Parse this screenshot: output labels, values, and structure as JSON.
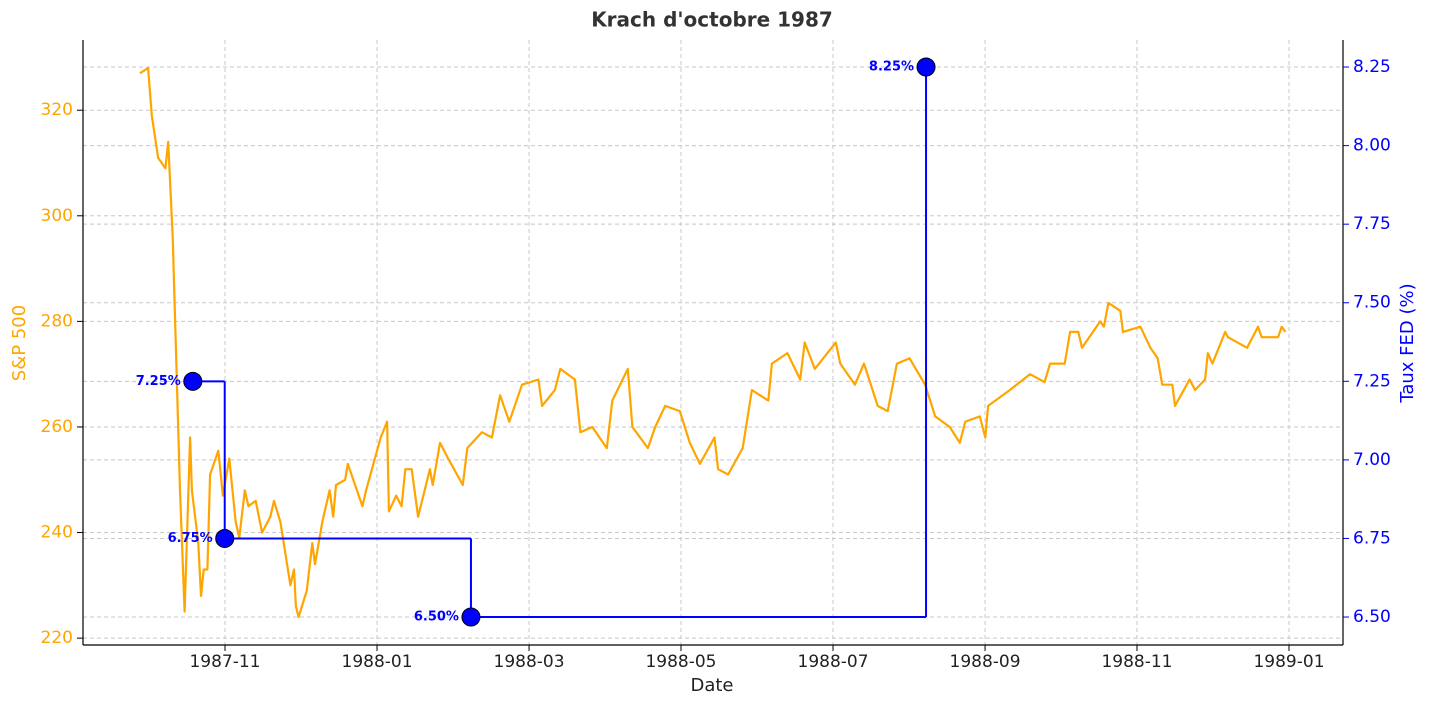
{
  "chart_data": {
    "type": "line",
    "title": "Krach d'octobre 1987",
    "xlabel": "Date",
    "ylabel": "S&P 500",
    "y2label": "Taux FED (%)",
    "grid": true,
    "xlim": [
      1987.6776,
      1989.0592
    ],
    "xticks": [
      {
        "value": 1987.8333,
        "label": "1987-11"
      },
      {
        "value": 1988.0,
        "label": "1988-01"
      },
      {
        "value": 1988.1667,
        "label": "1988-03"
      },
      {
        "value": 1988.3333,
        "label": "1988-05"
      },
      {
        "value": 1988.5,
        "label": "1988-07"
      },
      {
        "value": 1988.6667,
        "label": "1988-09"
      },
      {
        "value": 1988.8333,
        "label": "1988-11"
      },
      {
        "value": 1989.0,
        "label": "1989-01"
      }
    ],
    "ylim": [
      218.7,
      333.3
    ],
    "yticks": [
      220,
      240,
      260,
      280,
      300,
      320
    ],
    "y2lim": [
      6.411,
      8.336
    ],
    "y2ticks": [
      {
        "value": 6.5,
        "label": "6.50"
      },
      6.75,
      {
        "value": 7.0,
        "label": "7.00"
      },
      7.25,
      {
        "value": 7.5,
        "label": "7.50"
      },
      7.75,
      {
        "value": 8.0,
        "label": "8.00"
      },
      8.25
    ],
    "series": [
      {
        "color": "#ffa500",
        "axis": "y",
        "x": [
          1987.74,
          1987.749,
          1987.753,
          1987.76,
          1987.768,
          1987.771,
          1987.776,
          1987.784,
          1987.789,
          1987.795,
          1987.797,
          1987.804,
          1987.807,
          1987.81,
          1987.814,
          1987.817,
          1987.826,
          1987.831,
          1987.838,
          1987.845,
          1987.849,
          1987.855,
          1987.859,
          1987.867,
          1987.874,
          1987.883,
          1987.887,
          1987.894,
          1987.905,
          1987.909,
          1987.911,
          1987.914,
          1987.923,
          1987.929,
          1987.932,
          1987.94,
          1987.948,
          1987.952,
          1987.955,
          1987.965,
          1987.968,
          1987.984,
          1987.988,
          1988.004,
          1988.011,
          1988.013,
          1988.021,
          1988.027,
          1988.031,
          1988.038,
          1988.045,
          1988.058,
          1988.061,
          1988.069,
          1988.078,
          1988.094,
          1988.099,
          1988.115,
          1988.126,
          1988.135,
          1988.145,
          1988.159,
          1988.177,
          1988.181,
          1988.195,
          1988.201,
          1988.217,
          1988.223,
          1988.236,
          1988.252,
          1988.258,
          1988.275,
          1988.28,
          1988.297,
          1988.305,
          1988.316,
          1988.332,
          1988.343,
          1988.354,
          1988.37,
          1988.374,
          1988.385,
          1988.401,
          1988.411,
          1988.429,
          1988.433,
          1988.45,
          1988.464,
          1988.469,
          1988.48,
          1988.503,
          1988.508,
          1988.524,
          1988.534,
          1988.549,
          1988.56,
          1988.57,
          1988.584,
          1988.601,
          1988.612,
          1988.628,
          1988.639,
          1988.645,
          1988.661,
          1988.667,
          1988.67,
          1988.694,
          1988.716,
          1988.732,
          1988.738,
          1988.754,
          1988.76,
          1988.769,
          1988.773,
          1988.793,
          1988.797,
          1988.802,
          1988.815,
          1988.818,
          1988.837,
          1988.848,
          1988.856,
          1988.861,
          1988.872,
          1988.875,
          1988.891,
          1988.897,
          1988.908,
          1988.911,
          1988.916,
          1988.93,
          1988.933,
          1988.954,
          1988.966,
          1988.97,
          1988.988,
          1988.992,
          1988.996
        ],
        "values": [
          327,
          328,
          319,
          311,
          309,
          314,
          296,
          248,
          225,
          258,
          248,
          238,
          228,
          233,
          233,
          251,
          255.5,
          247,
          254,
          242,
          239,
          248,
          245,
          246,
          240,
          243,
          246,
          242,
          230,
          233,
          226,
          224,
          229,
          238,
          234,
          242,
          248,
          243,
          249,
          250,
          253,
          245,
          248,
          258,
          261,
          244,
          247,
          245,
          252,
          252,
          243,
          252,
          249,
          257,
          254,
          249,
          256,
          259,
          258,
          266,
          261,
          268,
          269,
          264,
          267,
          271,
          269,
          259,
          260,
          256,
          265,
          271,
          260,
          256,
          260,
          264,
          263,
          257,
          253,
          258,
          252,
          251,
          256,
          267,
          265,
          272,
          274,
          269,
          276,
          271,
          276,
          272,
          268,
          272,
          264,
          263,
          272,
          273,
          268,
          262,
          260,
          257,
          261,
          262,
          258,
          264,
          267,
          270,
          268.5,
          272,
          272,
          278,
          278,
          275,
          280,
          279,
          283.5,
          282,
          278,
          279,
          275,
          273,
          268,
          268,
          264,
          269,
          267,
          269,
          274,
          272,
          278,
          277,
          275,
          279,
          277,
          277,
          279,
          278
        ]
      },
      {
        "color": "#0000ff",
        "axis": "y2",
        "step": true,
        "x": [
          1987.798,
          1987.833,
          1988.103,
          1988.602
        ],
        "values": [
          7.25,
          6.75,
          6.5,
          8.25
        ],
        "value_labels": [
          "7.25%",
          "6.75%",
          "6.50%",
          "8.25%"
        ]
      }
    ]
  }
}
